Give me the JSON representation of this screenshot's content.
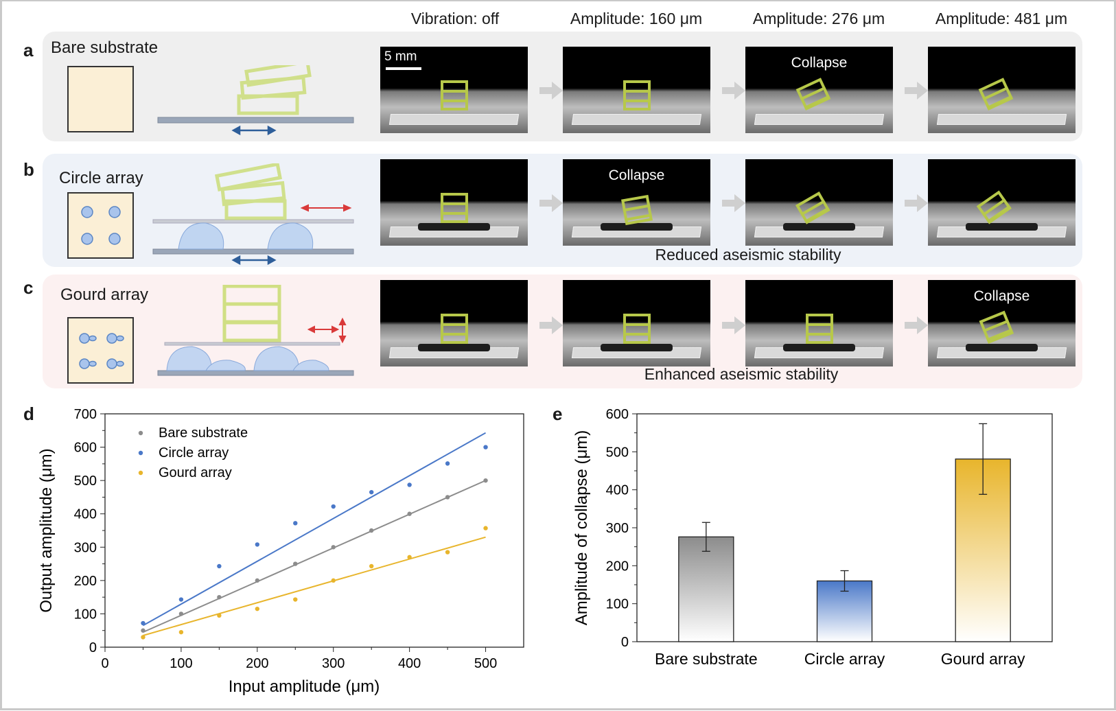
{
  "columns": [
    "Vibration: off",
    "Amplitude: 160 μm",
    "Amplitude: 276 μm",
    "Amplitude: 481 μm"
  ],
  "panels": {
    "a": {
      "letter": "a",
      "title": "Bare substrate",
      "scale_label": "5 mm",
      "captions": [
        "",
        "",
        "Collapse",
        ""
      ]
    },
    "b": {
      "letter": "b",
      "title": "Circle array",
      "captions": [
        "",
        "Collapse",
        "",
        ""
      ],
      "note": "Reduced aseismic stability"
    },
    "c": {
      "letter": "c",
      "title": "Gourd array",
      "captions": [
        "",
        "",
        "",
        "Collapse"
      ],
      "note": "Enhanced aseismic stability"
    },
    "d": {
      "letter": "d"
    },
    "e": {
      "letter": "e"
    }
  },
  "colors": {
    "bare": "#8c8c8c",
    "circle": "#4a78c8",
    "gourd": "#e8b52c",
    "panel_a_bg": "#efefef",
    "panel_b_bg": "#eef2f8",
    "panel_c_bg": "#fcf1f1"
  },
  "chart_data": [
    {
      "type": "scatter",
      "xlabel": "Input amplitude (μm)",
      "ylabel": "Output amplitude (μm)",
      "xlim": [
        0,
        550
      ],
      "ylim": [
        0,
        700
      ],
      "xticks": [
        0,
        100,
        200,
        300,
        400,
        500
      ],
      "yticks": [
        0,
        100,
        200,
        300,
        400,
        500,
        600,
        700
      ],
      "legend_position": "top-left",
      "x": [
        50,
        100,
        150,
        200,
        250,
        300,
        350,
        400,
        450,
        500
      ],
      "series": [
        {
          "name": "Bare substrate",
          "color": "#8c8c8c",
          "values": [
            50,
            100,
            150,
            200,
            250,
            300,
            350,
            400,
            450,
            500
          ],
          "fit": [
            45,
            500
          ]
        },
        {
          "name": "Circle array",
          "color": "#4a78c8",
          "values": [
            72,
            143,
            243,
            308,
            372,
            422,
            465,
            487,
            551,
            600
          ],
          "fit": [
            65,
            643
          ]
        },
        {
          "name": "Gourd array",
          "color": "#e8b52c",
          "values": [
            30,
            45,
            95,
            115,
            143,
            200,
            243,
            270,
            285,
            357
          ],
          "fit": [
            35,
            330
          ]
        }
      ]
    },
    {
      "type": "bar",
      "ylabel": "Amplitude of collapse (μm)",
      "ylim": [
        0,
        600
      ],
      "yticks": [
        0,
        100,
        200,
        300,
        400,
        500,
        600
      ],
      "categories": [
        "Bare substrate",
        "Circle array",
        "Gourd array"
      ],
      "values": [
        276,
        160,
        481
      ],
      "errors": [
        38,
        27,
        93
      ],
      "colors": [
        "#8c8c8c",
        "#4a78c8",
        "#e8b52c"
      ]
    }
  ]
}
